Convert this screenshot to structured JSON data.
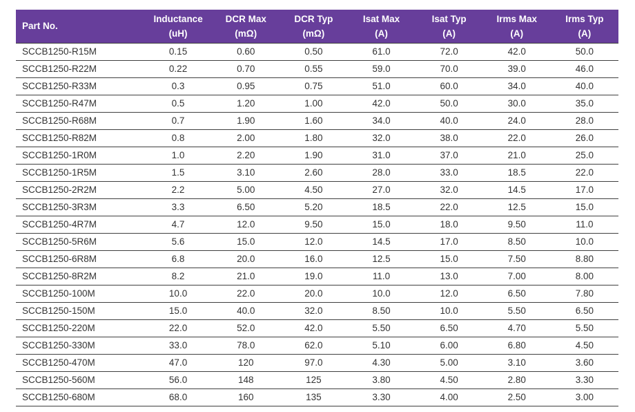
{
  "colors": {
    "header_bg": "#673E9B",
    "header_text": "#FFFFFF",
    "cell_text": "#333333",
    "row_line": "#3F3F3F"
  },
  "table": {
    "columns": [
      {
        "label": "Part No.",
        "unit": ""
      },
      {
        "label": "Inductance",
        "unit": "(uH)"
      },
      {
        "label": "DCR Max",
        "unit": "(mΩ)"
      },
      {
        "label": "DCR Typ",
        "unit": "(mΩ)"
      },
      {
        "label": "Isat Max",
        "unit": "(A)"
      },
      {
        "label": "Isat Typ",
        "unit": "(A)"
      },
      {
        "label": "Irms Max",
        "unit": "(A)"
      },
      {
        "label": "Irms Typ",
        "unit": "(A)"
      }
    ],
    "rows": [
      [
        "SCCB1250-R15M",
        "0.15",
        "0.60",
        "0.50",
        "61.0",
        "72.0",
        "42.0",
        "50.0"
      ],
      [
        "SCCB1250-R22M",
        "0.22",
        "0.70",
        "0.55",
        "59.0",
        "70.0",
        "39.0",
        "46.0"
      ],
      [
        "SCCB1250-R33M",
        "0.3",
        "0.95",
        "0.75",
        "51.0",
        "60.0",
        "34.0",
        "40.0"
      ],
      [
        "SCCB1250-R47M",
        "0.5",
        "1.20",
        "1.00",
        "42.0",
        "50.0",
        "30.0",
        "35.0"
      ],
      [
        "SCCB1250-R68M",
        "0.7",
        "1.90",
        "1.60",
        "34.0",
        "40.0",
        "24.0",
        "28.0"
      ],
      [
        "SCCB1250-R82M",
        "0.8",
        "2.00",
        "1.80",
        "32.0",
        "38.0",
        "22.0",
        "26.0"
      ],
      [
        "SCCB1250-1R0M",
        "1.0",
        "2.20",
        "1.90",
        "31.0",
        "37.0",
        "21.0",
        "25.0"
      ],
      [
        "SCCB1250-1R5M",
        "1.5",
        "3.10",
        "2.60",
        "28.0",
        "33.0",
        "18.5",
        "22.0"
      ],
      [
        "SCCB1250-2R2M",
        "2.2",
        "5.00",
        "4.50",
        "27.0",
        "32.0",
        "14.5",
        "17.0"
      ],
      [
        "SCCB1250-3R3M",
        "3.3",
        "6.50",
        "5.20",
        "18.5",
        "22.0",
        "12.5",
        "15.0"
      ],
      [
        "SCCB1250-4R7M",
        "4.7",
        "12.0",
        "9.50",
        "15.0",
        "18.0",
        "9.50",
        "11.0"
      ],
      [
        "SCCB1250-5R6M",
        "5.6",
        "15.0",
        "12.0",
        "14.5",
        "17.0",
        "8.50",
        "10.0"
      ],
      [
        "SCCB1250-6R8M",
        "6.8",
        "20.0",
        "16.0",
        "12.5",
        "15.0",
        "7.50",
        "8.80"
      ],
      [
        "SCCB1250-8R2M",
        "8.2",
        "21.0",
        "19.0",
        "11.0",
        "13.0",
        "7.00",
        "8.00"
      ],
      [
        "SCCB1250-100M",
        "10.0",
        "22.0",
        "20.0",
        "10.0",
        "12.0",
        "6.50",
        "7.80"
      ],
      [
        "SCCB1250-150M",
        "15.0",
        "40.0",
        "32.0",
        "8.50",
        "10.0",
        "5.50",
        "6.50"
      ],
      [
        "SCCB1250-220M",
        "22.0",
        "52.0",
        "42.0",
        "5.50",
        "6.50",
        "4.70",
        "5.50"
      ],
      [
        "SCCB1250-330M",
        "33.0",
        "78.0",
        "62.0",
        "5.10",
        "6.00",
        "6.80",
        "4.50"
      ],
      [
        "SCCB1250-470M",
        "47.0",
        "120",
        "97.0",
        "4.30",
        "5.00",
        "3.10",
        "3.60"
      ],
      [
        "SCCB1250-560M",
        "56.0",
        "148",
        "125",
        "3.80",
        "4.50",
        "2.80",
        "3.30"
      ],
      [
        "SCCB1250-680M",
        "68.0",
        "160",
        "135",
        "3.30",
        "4.00",
        "2.50",
        "3.00"
      ]
    ]
  }
}
